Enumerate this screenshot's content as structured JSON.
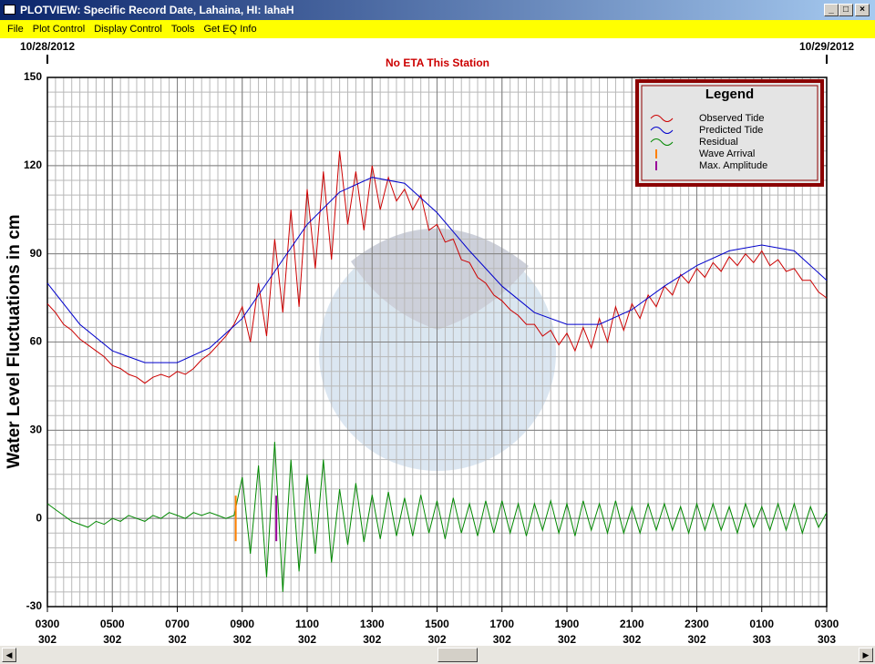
{
  "window": {
    "title": "PLOTVIEW: Specific Record Date, Lahaina, HI: lahaH",
    "menu": [
      "File",
      "Plot Control",
      "Display Control",
      "Tools",
      "Get EQ Info"
    ]
  },
  "chart_data": {
    "type": "line",
    "subtitle": "No ETA This Station",
    "y_label": "Water Level Fluctuations in cm",
    "date_labels": [
      {
        "x": 3,
        "label": "10/28/2012"
      },
      {
        "x": 27,
        "label": "10/29/2012"
      }
    ],
    "xlim": [
      3,
      27
    ],
    "xticks": [
      {
        "value": 3,
        "label": "0300",
        "day": "302"
      },
      {
        "value": 5,
        "label": "0500",
        "day": "302"
      },
      {
        "value": 7,
        "label": "0700",
        "day": "302"
      },
      {
        "value": 9,
        "label": "0900",
        "day": "302"
      },
      {
        "value": 11,
        "label": "1100",
        "day": "302"
      },
      {
        "value": 13,
        "label": "1300",
        "day": "302"
      },
      {
        "value": 15,
        "label": "1500",
        "day": "302"
      },
      {
        "value": 17,
        "label": "1700",
        "day": "302"
      },
      {
        "value": 19,
        "label": "1900",
        "day": "302"
      },
      {
        "value": 21,
        "label": "2100",
        "day": "302"
      },
      {
        "value": 23,
        "label": "2300",
        "day": "302"
      },
      {
        "value": 25,
        "label": "0100",
        "day": "303"
      },
      {
        "value": 27,
        "label": "0300",
        "day": "303"
      }
    ],
    "ylim": [
      -30,
      150
    ],
    "yticks": [
      -30,
      0,
      30,
      60,
      90,
      120,
      150
    ],
    "grid": true,
    "legend_title": "Legend",
    "legend_position": "top-right",
    "x": [
      3,
      3.25,
      3.5,
      3.75,
      4,
      4.25,
      4.5,
      4.75,
      5,
      5.25,
      5.5,
      5.75,
      6,
      6.25,
      6.5,
      6.75,
      7,
      7.25,
      7.5,
      7.75,
      8,
      8.25,
      8.5,
      8.75,
      9,
      9.25,
      9.5,
      9.75,
      10,
      10.25,
      10.5,
      10.75,
      11,
      11.25,
      11.5,
      11.75,
      12,
      12.25,
      12.5,
      12.75,
      13,
      13.25,
      13.5,
      13.75,
      14,
      14.25,
      14.5,
      14.75,
      15,
      15.25,
      15.5,
      15.75,
      16,
      16.25,
      16.5,
      16.75,
      17,
      17.25,
      17.5,
      17.75,
      18,
      18.25,
      18.5,
      18.75,
      19,
      19.25,
      19.5,
      19.75,
      20,
      20.25,
      20.5,
      20.75,
      21,
      21.25,
      21.5,
      21.75,
      22,
      22.25,
      22.5,
      22.75,
      23,
      23.25,
      23.5,
      23.75,
      24,
      24.25,
      24.5,
      24.75,
      25,
      25.25,
      25.5,
      25.75,
      26,
      26.25,
      26.5,
      26.75,
      27
    ],
    "series": [
      {
        "name": "Observed Tide",
        "color": "#cc0000",
        "values": [
          73,
          70,
          66,
          64,
          61,
          59,
          57,
          55,
          52,
          51,
          49,
          48,
          46,
          48,
          49,
          48,
          50,
          49,
          51,
          54,
          56,
          59,
          62,
          66,
          72,
          60,
          80,
          62,
          95,
          70,
          105,
          72,
          112,
          85,
          118,
          88,
          125,
          100,
          118,
          98,
          120,
          105,
          116,
          108,
          112,
          105,
          110,
          98,
          100,
          94,
          95,
          88,
          87,
          82,
          80,
          76,
          74,
          71,
          69,
          66,
          66,
          62,
          64,
          59,
          63,
          57,
          65,
          58,
          68,
          60,
          72,
          64,
          73,
          68,
          76,
          72,
          79,
          76,
          83,
          80,
          85,
          82,
          87,
          84,
          89,
          86,
          90,
          87,
          91,
          86,
          88,
          84,
          85,
          81,
          81,
          77,
          75
        ]
      },
      {
        "name": "Predicted Tide",
        "color": "#0000cc",
        "x": [
          3,
          4,
          5,
          6,
          7,
          8,
          9,
          10,
          11,
          12,
          13,
          14,
          15,
          16,
          17,
          18,
          19,
          20,
          21,
          22,
          23,
          24,
          25,
          26,
          27
        ],
        "values": [
          80,
          66,
          57,
          53,
          53,
          58,
          68,
          84,
          100,
          111,
          116,
          114,
          104,
          91,
          79,
          70,
          66,
          66,
          71,
          79,
          86,
          91,
          93,
          91,
          81
        ]
      },
      {
        "name": "Residual",
        "color": "#008800",
        "values": [
          5,
          3,
          1,
          -1,
          -2,
          -3,
          -1,
          -2,
          0,
          -1,
          1,
          0,
          -1,
          1,
          0,
          2,
          1,
          0,
          2,
          1,
          2,
          1,
          0,
          1,
          14,
          -12,
          18,
          -20,
          26,
          -25,
          20,
          -18,
          15,
          -12,
          20,
          -15,
          10,
          -9,
          12,
          -8,
          8,
          -7,
          9,
          -6,
          7,
          -6,
          8,
          -5,
          6,
          -7,
          7,
          -5,
          5,
          -6,
          6,
          -5,
          6,
          -5,
          5,
          -6,
          5,
          -4,
          6,
          -5,
          5,
          -6,
          6,
          -4,
          5,
          -5,
          6,
          -5,
          4,
          -5,
          5,
          -4,
          5,
          -4,
          4,
          -5,
          5,
          -4,
          5,
          -4,
          4,
          -5,
          5,
          -3,
          4,
          -4,
          5,
          -4,
          5,
          -5,
          4,
          -3,
          2
        ]
      }
    ],
    "markers": [
      {
        "name": "Wave Arrival",
        "color": "#ff8000",
        "x": 8.8
      },
      {
        "name": "Max. Amplitude",
        "color": "#990099",
        "x": 10.05
      }
    ]
  }
}
